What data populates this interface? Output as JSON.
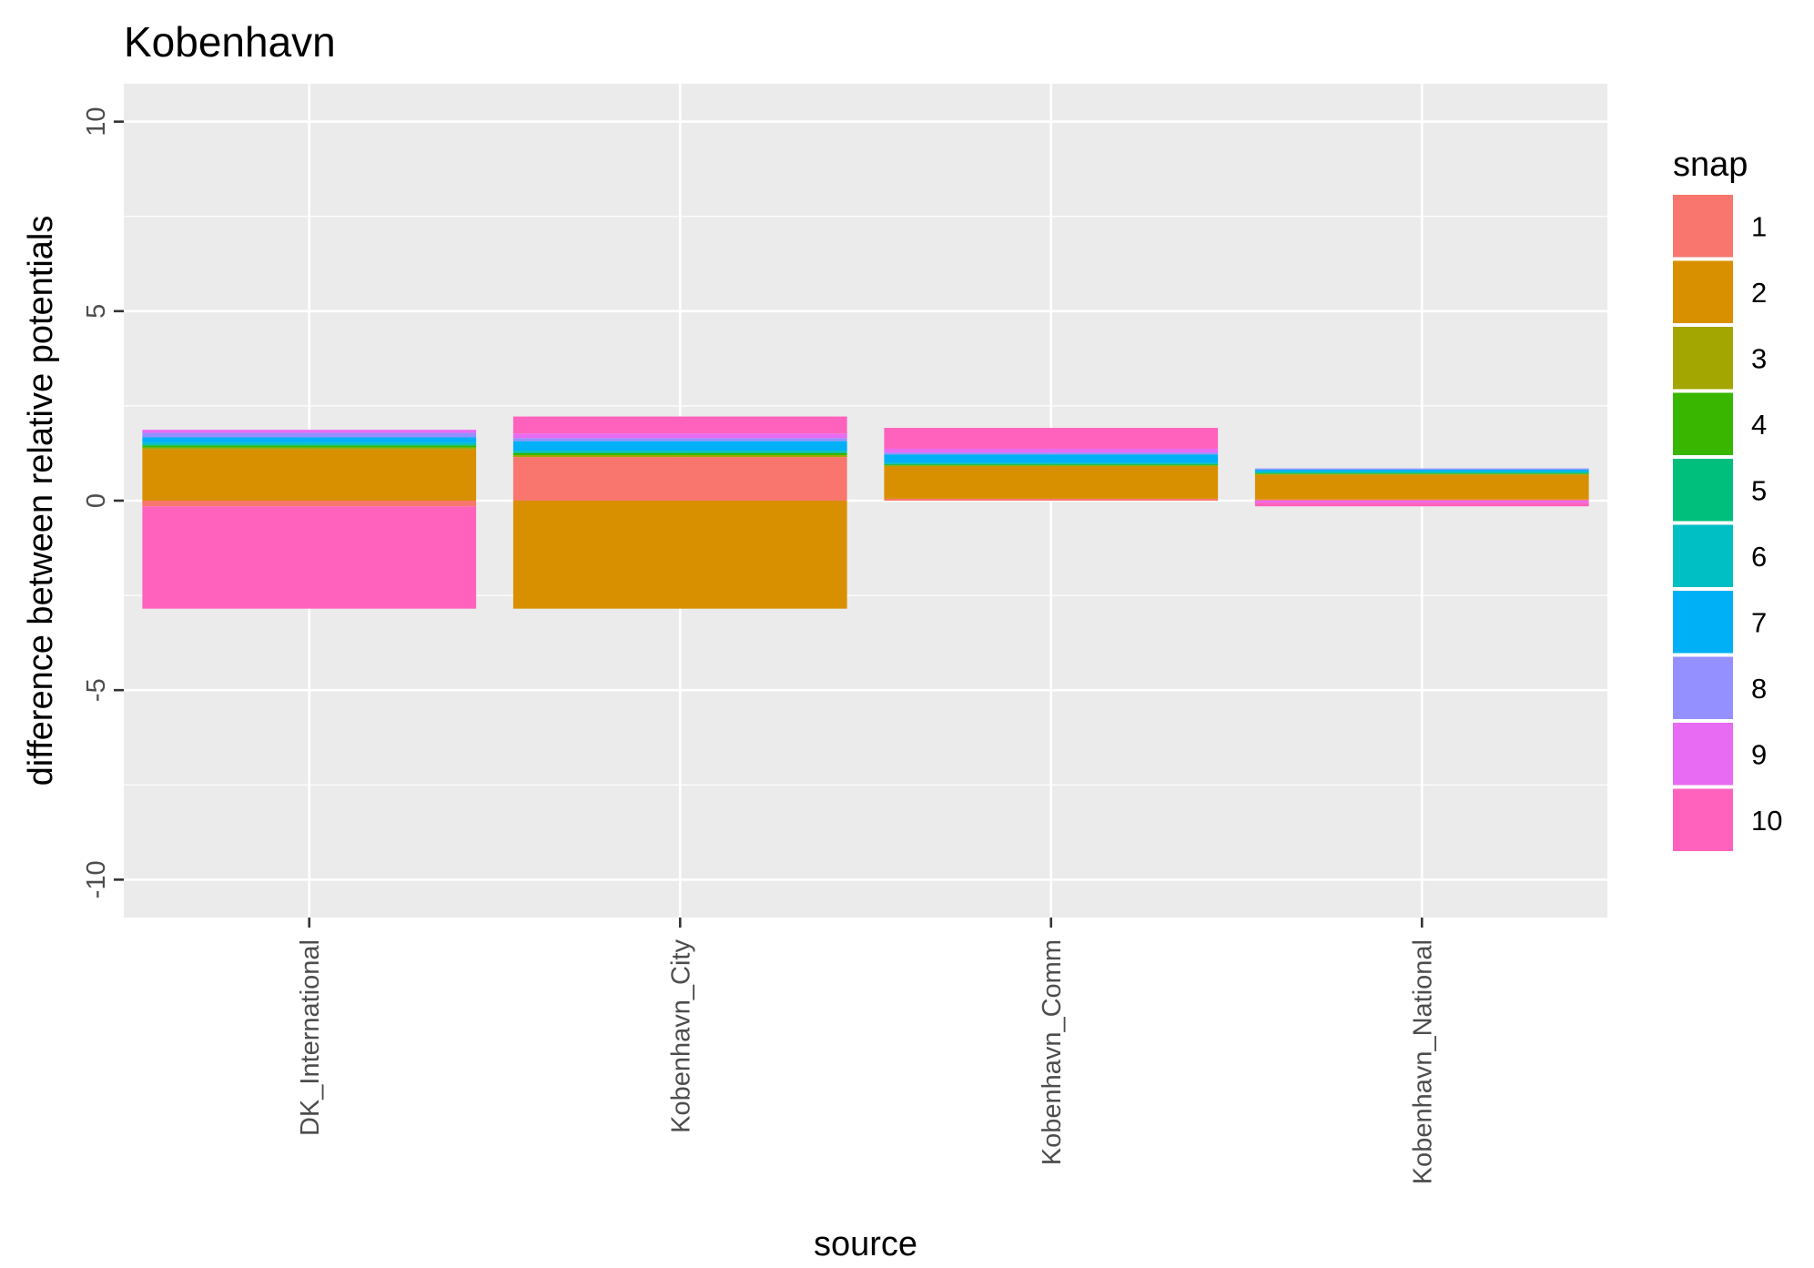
{
  "chart_data": {
    "type": "bar",
    "stacked": true,
    "title": "Kobenhavn",
    "xlabel": "source",
    "ylabel": "difference between relative potentials",
    "ylim": [
      -11,
      11
    ],
    "yticks": [
      -10,
      -5,
      0,
      5,
      10
    ],
    "ytick_labels": [
      "-10",
      "-5",
      "0",
      "5",
      "10"
    ],
    "grid": true,
    "legend": {
      "title": "snap",
      "placement": "right"
    },
    "categories": [
      "DK_International",
      "Kobenhavn_City",
      "Kobenhavn_Comm",
      "Kobenhavn_National"
    ],
    "series": [
      {
        "name": "1",
        "color": "#F8766D",
        "values": [
          -0.15,
          1.15,
          0.05,
          0.03
        ]
      },
      {
        "name": "2",
        "color": "#D89000",
        "values": [
          1.35,
          -2.85,
          0.85,
          0.65
        ]
      },
      {
        "name": "3",
        "color": "#A3A500",
        "values": [
          0.05,
          0.05,
          0.03,
          0.02
        ]
      },
      {
        "name": "4",
        "color": "#39B600",
        "values": [
          0.05,
          0.05,
          0.02,
          0.02
        ]
      },
      {
        "name": "5",
        "color": "#00BF7D",
        "values": [
          0.03,
          0.03,
          0.02,
          0.02
        ]
      },
      {
        "name": "6",
        "color": "#00BFC4",
        "values": [
          0.05,
          0.04,
          0.03,
          0.03
        ]
      },
      {
        "name": "7",
        "color": "#00B0F6",
        "values": [
          0.14,
          0.25,
          0.22,
          0.05
        ]
      },
      {
        "name": "8",
        "color": "#9590FF",
        "values": [
          0.12,
          0.08,
          0.05,
          0.03
        ]
      },
      {
        "name": "9",
        "color": "#E76BF3",
        "values": [
          0.08,
          0.12,
          0.1,
          -0.05
        ]
      },
      {
        "name": "10",
        "color": "#FF62BC",
        "values": [
          -2.7,
          0.45,
          0.55,
          -0.1
        ]
      }
    ]
  }
}
